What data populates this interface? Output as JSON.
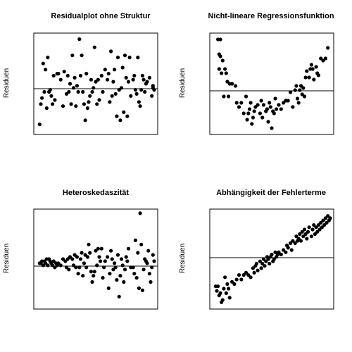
{
  "chart_data": [
    {
      "type": "scatter",
      "title": "Residualplot ohne Struktur",
      "ylabel": "Residuen",
      "xlabel": "",
      "axes": false,
      "reference_line": 0,
      "xlim": [
        0,
        100
      ],
      "ylim": [
        -2.4,
        2.6
      ],
      "points": [
        [
          2,
          -1.9
        ],
        [
          3,
          -0.9
        ],
        [
          4,
          -0.6
        ],
        [
          5,
          1.1
        ],
        [
          6,
          -0.3
        ],
        [
          7,
          0.8
        ],
        [
          8,
          -1.1
        ],
        [
          9,
          1.4
        ],
        [
          10,
          -0.3
        ],
        [
          11,
          -0.2
        ],
        [
          12,
          -0.5
        ],
        [
          13,
          -0.9
        ],
        [
          14,
          0.5
        ],
        [
          15,
          -0.7
        ],
        [
          17,
          0.6
        ],
        [
          18,
          0.6
        ],
        [
          20,
          0.3
        ],
        [
          22,
          -1.0
        ],
        [
          23,
          0.7
        ],
        [
          25,
          -0.4
        ],
        [
          26,
          0.5
        ],
        [
          27,
          -0.3
        ],
        [
          28,
          0.1
        ],
        [
          29,
          -0.9
        ],
        [
          30,
          1.5
        ],
        [
          31,
          -0.1
        ],
        [
          32,
          0.4
        ],
        [
          33,
          -1.0
        ],
        [
          34,
          0.0
        ],
        [
          35,
          -0.3
        ],
        [
          36,
          2.3
        ],
        [
          37,
          0.5
        ],
        [
          38,
          1.5
        ],
        [
          39,
          -0.3
        ],
        [
          40,
          -0.9
        ],
        [
          41,
          -1.7
        ],
        [
          42,
          0.6
        ],
        [
          43,
          -1.1
        ],
        [
          44,
          -0.8
        ],
        [
          45,
          -0.5
        ],
        [
          46,
          0.3
        ],
        [
          47,
          -0.3
        ],
        [
          48,
          -0.1
        ],
        [
          49,
          1.9
        ],
        [
          50,
          0.2
        ],
        [
          51,
          -0.9
        ],
        [
          52,
          0.3
        ],
        [
          53,
          -0.7
        ],
        [
          55,
          0.5
        ],
        [
          56,
          -0.3
        ],
        [
          58,
          0.8
        ],
        [
          60,
          0.3
        ],
        [
          61,
          0.6
        ],
        [
          62,
          -0.8
        ],
        [
          63,
          1.7
        ],
        [
          64,
          -0.5
        ],
        [
          65,
          0.2
        ],
        [
          66,
          0.8
        ],
        [
          67,
          -0.4
        ],
        [
          68,
          -1.5
        ],
        [
          69,
          1.4
        ],
        [
          70,
          -0.2
        ],
        [
          71,
          -1.7
        ],
        [
          72,
          -0.1
        ],
        [
          73,
          0.9
        ],
        [
          74,
          -1.3
        ],
        [
          75,
          1.5
        ],
        [
          76,
          0.4
        ],
        [
          77,
          -1.5
        ],
        [
          78,
          0.2
        ],
        [
          79,
          1.4
        ],
        [
          80,
          -0.5
        ],
        [
          82,
          0.3
        ],
        [
          83,
          0.5
        ],
        [
          84,
          -0.2
        ],
        [
          85,
          -0.4
        ],
        [
          86,
          1.4
        ],
        [
          87,
          -0.8
        ],
        [
          88,
          -1.0
        ],
        [
          89,
          -0.2
        ],
        [
          90,
          0.5
        ],
        [
          91,
          0.3
        ],
        [
          92,
          -0.3
        ],
        [
          93,
          0.1
        ],
        [
          94,
          0.2
        ],
        [
          96,
          0.4
        ],
        [
          98,
          -0.5
        ],
        [
          99,
          0.0
        ],
        [
          99,
          -0.1
        ],
        [
          100,
          -0.2
        ]
      ]
    },
    {
      "type": "scatter",
      "title": "Nicht-lineare Regressionsfunktion",
      "ylabel": "Residuen",
      "xlabel": "",
      "axes": false,
      "reference_line": 0,
      "xlim": [
        0,
        100
      ],
      "ylim": [
        -2.0,
        2.8
      ],
      "points": [
        [
          4,
          2.5
        ],
        [
          5,
          1.8
        ],
        [
          5,
          1.1
        ],
        [
          6,
          2.5
        ],
        [
          6,
          1.7
        ],
        [
          7,
          0.9
        ],
        [
          8,
          1.5
        ],
        [
          9,
          -0.2
        ],
        [
          10,
          1.1
        ],
        [
          11,
          0.9
        ],
        [
          12,
          0.5
        ],
        [
          13,
          -0.2
        ],
        [
          14,
          0.4
        ],
        [
          16,
          0.4
        ],
        [
          19,
          0.3
        ],
        [
          20,
          -0.5
        ],
        [
          22,
          -0.7
        ],
        [
          24,
          -0.5
        ],
        [
          26,
          -1.0
        ],
        [
          28,
          -0.2
        ],
        [
          29,
          -1.3
        ],
        [
          30,
          -1.0
        ],
        [
          31,
          -0.8
        ],
        [
          32,
          -0.5
        ],
        [
          33,
          -1.5
        ],
        [
          34,
          -1.2
        ],
        [
          35,
          -0.9
        ],
        [
          36,
          -0.7
        ],
        [
          38,
          -0.6
        ],
        [
          40,
          -1.0
        ],
        [
          41,
          -0.4
        ],
        [
          42,
          -1.2
        ],
        [
          43,
          -0.6
        ],
        [
          45,
          -0.9
        ],
        [
          46,
          -0.8
        ],
        [
          47,
          -1.4
        ],
        [
          48,
          -0.5
        ],
        [
          49,
          -0.7
        ],
        [
          50,
          -1.7
        ],
        [
          51,
          -0.9
        ],
        [
          52,
          -1.0
        ],
        [
          53,
          -0.3
        ],
        [
          54,
          -0.8
        ],
        [
          56,
          -0.6
        ],
        [
          58,
          -0.8
        ],
        [
          60,
          -0.5
        ],
        [
          62,
          -0.4
        ],
        [
          64,
          -0.4
        ],
        [
          66,
          0.0
        ],
        [
          68,
          -0.7
        ],
        [
          70,
          0.1
        ],
        [
          71,
          0.3
        ],
        [
          72,
          -0.3
        ],
        [
          73,
          -0.5
        ],
        [
          74,
          0.1
        ],
        [
          75,
          0.3
        ],
        [
          76,
          -0.1
        ],
        [
          77,
          0.2
        ],
        [
          78,
          -0.2
        ],
        [
          79,
          0.7
        ],
        [
          80,
          1.0
        ],
        [
          82,
          0.7
        ],
        [
          83,
          1.1
        ],
        [
          84,
          1.3
        ],
        [
          85,
          1.1
        ],
        [
          86,
          0.6
        ],
        [
          88,
          1.2
        ],
        [
          89,
          0.9
        ],
        [
          90,
          0.8
        ],
        [
          92,
          1.6
        ],
        [
          94,
          1.5
        ],
        [
          96,
          1.6
        ],
        [
          98,
          2.1
        ]
      ]
    },
    {
      "type": "scatter",
      "title": "Heteroskedaszität",
      "ylabel": "Residuen",
      "xlabel": "",
      "axes": false,
      "reference_line": 0,
      "xlim": [
        0,
        100
      ],
      "ylim": [
        -2.2,
        2.6
      ],
      "points": [
        [
          2,
          0.0
        ],
        [
          3,
          0.0
        ],
        [
          4,
          0.1
        ],
        [
          5,
          -0.1
        ],
        [
          6,
          0.1
        ],
        [
          7,
          0.0
        ],
        [
          8,
          0.2
        ],
        [
          9,
          -0.1
        ],
        [
          10,
          0.2
        ],
        [
          11,
          0.1
        ],
        [
          12,
          0.0
        ],
        [
          13,
          -0.1
        ],
        [
          14,
          0.1
        ],
        [
          15,
          -0.2
        ],
        [
          16,
          0.0
        ],
        [
          17,
          -0.1
        ],
        [
          18,
          0.0
        ],
        [
          20,
          -0.1
        ],
        [
          22,
          0.2
        ],
        [
          24,
          0.1
        ],
        [
          25,
          -0.2
        ],
        [
          26,
          0.2
        ],
        [
          27,
          -0.3
        ],
        [
          28,
          0.3
        ],
        [
          30,
          0.2
        ],
        [
          31,
          -0.1
        ],
        [
          32,
          0.4
        ],
        [
          33,
          -0.2
        ],
        [
          34,
          0.3
        ],
        [
          35,
          -0.5
        ],
        [
          36,
          -0.2
        ],
        [
          37,
          0.2
        ],
        [
          38,
          0.5
        ],
        [
          39,
          -0.6
        ],
        [
          40,
          0.0
        ],
        [
          41,
          0.4
        ],
        [
          42,
          -0.2
        ],
        [
          43,
          0.3
        ],
        [
          44,
          0.9
        ],
        [
          45,
          0.5
        ],
        [
          46,
          -0.4
        ],
        [
          47,
          -0.9
        ],
        [
          48,
          -0.6
        ],
        [
          49,
          -0.4
        ],
        [
          50,
          0.6
        ],
        [
          51,
          -0.1
        ],
        [
          52,
          0.7
        ],
        [
          53,
          0.3
        ],
        [
          54,
          0.1
        ],
        [
          55,
          0.7
        ],
        [
          56,
          -0.7
        ],
        [
          57,
          -0.2
        ],
        [
          58,
          0.1
        ],
        [
          60,
          0.3
        ],
        [
          61,
          -1.2
        ],
        [
          62,
          -0.5
        ],
        [
          63,
          0.6
        ],
        [
          64,
          0.2
        ],
        [
          65,
          -0.3
        ],
        [
          66,
          0.0
        ],
        [
          67,
          -0.2
        ],
        [
          68,
          -0.8
        ],
        [
          69,
          0.4
        ],
        [
          70,
          -1.6
        ],
        [
          71,
          -0.6
        ],
        [
          72,
          0.2
        ],
        [
          73,
          -0.1
        ],
        [
          74,
          -0.9
        ],
        [
          75,
          -0.3
        ],
        [
          76,
          0.3
        ],
        [
          77,
          0.1
        ],
        [
          78,
          0.7
        ],
        [
          80,
          -0.2
        ],
        [
          82,
          -0.2
        ],
        [
          83,
          -0.5
        ],
        [
          84,
          1.1
        ],
        [
          85,
          -0.7
        ],
        [
          86,
          0.5
        ],
        [
          87,
          -1.2
        ],
        [
          88,
          2.4
        ],
        [
          89,
          0.9
        ],
        [
          90,
          -1.3
        ],
        [
          91,
          -0.3
        ],
        [
          92,
          0.2
        ],
        [
          93,
          0.1
        ],
        [
          94,
          0.0
        ],
        [
          95,
          0.6
        ],
        [
          96,
          -0.5
        ],
        [
          97,
          -0.9
        ],
        [
          98,
          -0.2
        ],
        [
          99,
          0.4
        ],
        [
          100,
          0.1
        ]
      ]
    },
    {
      "type": "scatter",
      "title": "Abhängigkeit der Fehlerterme",
      "ylabel": "Residuen",
      "xlabel": "",
      "axes": false,
      "reference_line": 0,
      "xlim": [
        0,
        100
      ],
      "ylim": [
        -2.2,
        2.2
      ],
      "points": [
        [
          2,
          -1.2
        ],
        [
          3,
          -1.4
        ],
        [
          4,
          -1.2
        ],
        [
          5,
          -1.6
        ],
        [
          6,
          -1.5
        ],
        [
          7,
          -1.9
        ],
        [
          8,
          -1.8
        ],
        [
          9,
          -1.3
        ],
        [
          10,
          -0.8
        ],
        [
          11,
          -1.5
        ],
        [
          12,
          -1.1
        ],
        [
          13,
          -1.3
        ],
        [
          14,
          -1.7
        ],
        [
          16,
          -1.0
        ],
        [
          18,
          -1.1
        ],
        [
          20,
          -0.9
        ],
        [
          22,
          -0.7
        ],
        [
          24,
          -0.9
        ],
        [
          26,
          -0.7
        ],
        [
          28,
          -0.6
        ],
        [
          30,
          -0.7
        ],
        [
          32,
          -0.8
        ],
        [
          34,
          -0.4
        ],
        [
          35,
          -0.6
        ],
        [
          36,
          -0.3
        ],
        [
          37,
          -0.2
        ],
        [
          38,
          -0.5
        ],
        [
          40,
          -0.1
        ],
        [
          41,
          -0.4
        ],
        [
          42,
          -0.2
        ],
        [
          43,
          0.0
        ],
        [
          44,
          -0.3
        ],
        [
          45,
          -0.1
        ],
        [
          46,
          0.1
        ],
        [
          47,
          0.0
        ],
        [
          48,
          -0.2
        ],
        [
          49,
          0.1
        ],
        [
          50,
          0.2
        ],
        [
          51,
          -0.1
        ],
        [
          52,
          0.0
        ],
        [
          53,
          0.3
        ],
        [
          54,
          0.1
        ],
        [
          55,
          0.2
        ],
        [
          56,
          0.3
        ],
        [
          58,
          0.2
        ],
        [
          60,
          0.4
        ],
        [
          62,
          0.3
        ],
        [
          63,
          0.6
        ],
        [
          64,
          0.5
        ],
        [
          66,
          0.7
        ],
        [
          67,
          0.4
        ],
        [
          68,
          0.8
        ],
        [
          70,
          0.7
        ],
        [
          71,
          1.0
        ],
        [
          72,
          0.8
        ],
        [
          73,
          0.9
        ],
        [
          74,
          1.1
        ],
        [
          75,
          0.8
        ],
        [
          76,
          1.2
        ],
        [
          77,
          1.0
        ],
        [
          78,
          1.3
        ],
        [
          79,
          1.1
        ],
        [
          80,
          0.9
        ],
        [
          81,
          1.2
        ],
        [
          82,
          1.4
        ],
        [
          84,
          1.0
        ],
        [
          85,
          1.3
        ],
        [
          86,
          1.5
        ],
        [
          87,
          1.1
        ],
        [
          88,
          1.4
        ],
        [
          89,
          1.2
        ],
        [
          90,
          1.5
        ],
        [
          91,
          1.3
        ],
        [
          92,
          1.6
        ],
        [
          93,
          1.4
        ],
        [
          94,
          1.7
        ],
        [
          95,
          1.5
        ],
        [
          96,
          1.8
        ],
        [
          97,
          1.6
        ],
        [
          98,
          1.9
        ],
        [
          99,
          1.7
        ],
        [
          100,
          1.8
        ]
      ]
    }
  ]
}
